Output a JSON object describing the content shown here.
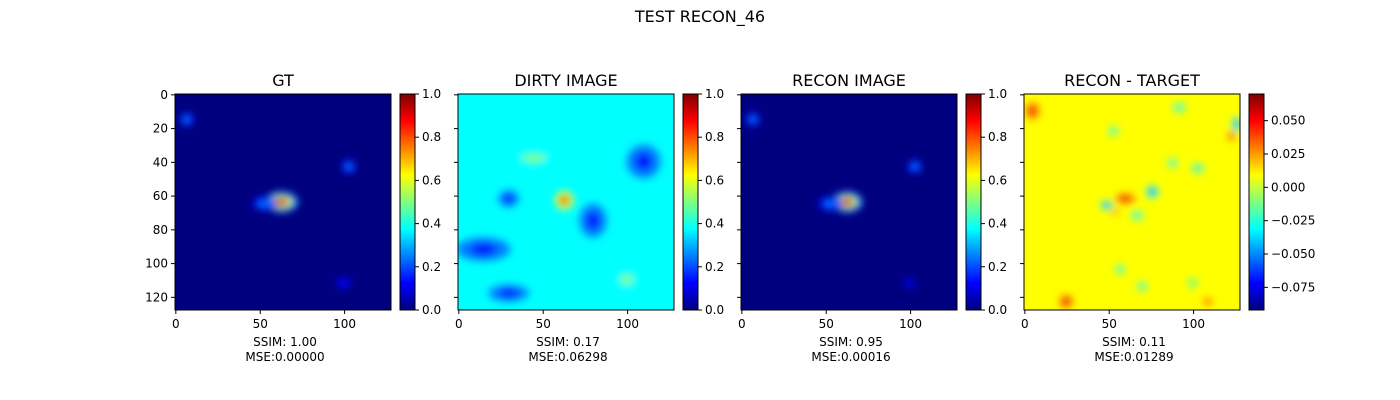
{
  "figure": {
    "title": "TEST RECON_46"
  },
  "colormap": [
    "#00007f",
    "#0000ff",
    "#007fff",
    "#00ffff",
    "#7fff7f",
    "#ffff00",
    "#ff7f00",
    "#ff0000",
    "#7f0000"
  ],
  "chart_data": [
    {
      "type": "heatmap",
      "title": "GT",
      "caption_line1": "SSIM: 1.00",
      "caption_line2": "MSE:0.00000",
      "image_size": [
        128,
        128
      ],
      "xticks": [
        "0",
        "50",
        "100"
      ],
      "yticks": [
        "0",
        "20",
        "40",
        "60",
        "80",
        "100",
        "120"
      ],
      "background_value": 0.06,
      "features": [
        {
          "x": 63,
          "y": 64,
          "rx": 10,
          "ry": 6,
          "value": 0.94
        },
        {
          "x": 53,
          "y": 65,
          "rx": 7,
          "ry": 4,
          "value": 0.3
        },
        {
          "x": 7,
          "y": 15,
          "rx": 4,
          "ry": 4,
          "value": 0.3
        },
        {
          "x": 103,
          "y": 43,
          "rx": 4,
          "ry": 4,
          "value": 0.3
        },
        {
          "x": 100,
          "y": 112,
          "rx": 4,
          "ry": 3,
          "value": 0.08
        }
      ],
      "colorbar": {
        "range": [
          0.0,
          1.0
        ],
        "ticks": [
          "0.0",
          "0.2",
          "0.4",
          "0.6",
          "0.8",
          "1.0"
        ]
      }
    },
    {
      "type": "heatmap",
      "title": "DIRTY IMAGE",
      "caption_line1": "SSIM: 0.17",
      "caption_line2": "MSE:0.06298",
      "image_size": [
        128,
        128
      ],
      "xticks": [
        "0",
        "50",
        "100"
      ],
      "yticks": [],
      "background_value": 0.33,
      "features": [
        {
          "x": 63,
          "y": 63,
          "rx": 6,
          "ry": 6,
          "value": 0.95
        },
        {
          "x": 30,
          "y": 62,
          "rx": 6,
          "ry": 5,
          "value": 0.1
        },
        {
          "x": 15,
          "y": 92,
          "rx": 16,
          "ry": 7,
          "value": 0.1
        },
        {
          "x": 110,
          "y": 40,
          "rx": 10,
          "ry": 10,
          "value": 0.12
        },
        {
          "x": 45,
          "y": 38,
          "rx": 14,
          "ry": 5,
          "value": 0.5
        },
        {
          "x": 30,
          "y": 118,
          "rx": 12,
          "ry": 5,
          "value": 0.12
        },
        {
          "x": 100,
          "y": 110,
          "rx": 8,
          "ry": 6,
          "value": 0.5
        },
        {
          "x": 80,
          "y": 75,
          "rx": 8,
          "ry": 10,
          "value": 0.12
        }
      ],
      "colorbar": {
        "range": [
          0.0,
          1.0
        ],
        "ticks": [
          "0.0",
          "0.2",
          "0.4",
          "0.6",
          "0.8",
          "1.0"
        ]
      }
    },
    {
      "type": "heatmap",
      "title": "RECON IMAGE",
      "caption_line1": "SSIM: 0.95",
      "caption_line2": "MSE:0.00016",
      "image_size": [
        128,
        128
      ],
      "xticks": [
        "0",
        "50",
        "100"
      ],
      "yticks": [],
      "background_value": 0.05,
      "features": [
        {
          "x": 63,
          "y": 64,
          "rx": 9,
          "ry": 6,
          "value": 0.94
        },
        {
          "x": 53,
          "y": 65,
          "rx": 7,
          "ry": 4,
          "value": 0.3
        },
        {
          "x": 7,
          "y": 15,
          "rx": 4,
          "ry": 4,
          "value": 0.3
        },
        {
          "x": 103,
          "y": 43,
          "rx": 4,
          "ry": 4,
          "value": 0.3
        },
        {
          "x": 100,
          "y": 112,
          "rx": 4,
          "ry": 3,
          "value": 0.08
        }
      ],
      "colorbar": {
        "range": [
          0.0,
          1.0
        ],
        "ticks": [
          "0.0",
          "0.2",
          "0.4",
          "0.6",
          "0.8",
          "1.0"
        ]
      }
    },
    {
      "type": "heatmap",
      "title": "RECON - TARGET",
      "caption_line1": "SSIM: 0.11",
      "caption_line2": "MSE:0.01289",
      "image_size": [
        128,
        128
      ],
      "xticks": [
        "0",
        "50",
        "100"
      ],
      "yticks": [],
      "background_value": 0.005,
      "features": [
        {
          "x": 5,
          "y": 10,
          "rx": 4,
          "ry": 5,
          "value": 0.07
        },
        {
          "x": 126,
          "y": 18,
          "rx": 3,
          "ry": 5,
          "value": -0.08
        },
        {
          "x": 123,
          "y": 25,
          "rx": 3,
          "ry": 4,
          "value": 0.06
        },
        {
          "x": 25,
          "y": 123,
          "rx": 4,
          "ry": 4,
          "value": 0.07
        },
        {
          "x": 60,
          "y": 62,
          "rx": 6,
          "ry": 3,
          "value": 0.07
        },
        {
          "x": 76,
          "y": 58,
          "rx": 4,
          "ry": 4,
          "value": -0.08
        },
        {
          "x": 49,
          "y": 66,
          "rx": 4,
          "ry": 3,
          "value": -0.07
        },
        {
          "x": 54,
          "y": 70,
          "rx": 3,
          "ry": 2,
          "value": 0.045
        },
        {
          "x": 67,
          "y": 72,
          "rx": 4,
          "ry": 3,
          "value": -0.035
        },
        {
          "x": 53,
          "y": 22,
          "rx": 3,
          "ry": 3,
          "value": -0.04
        },
        {
          "x": 92,
          "y": 8,
          "rx": 4,
          "ry": 3,
          "value": -0.035
        },
        {
          "x": 103,
          "y": 44,
          "rx": 4,
          "ry": 3,
          "value": -0.045
        },
        {
          "x": 88,
          "y": 41,
          "rx": 3,
          "ry": 3,
          "value": -0.03
        },
        {
          "x": 57,
          "y": 104,
          "rx": 3,
          "ry": 3,
          "value": -0.035
        },
        {
          "x": 70,
          "y": 114,
          "rx": 3,
          "ry": 3,
          "value": -0.03
        },
        {
          "x": 109,
          "y": 123,
          "rx": 4,
          "ry": 3,
          "value": 0.04
        },
        {
          "x": 100,
          "y": 112,
          "rx": 3,
          "ry": 3,
          "value": -0.02
        }
      ],
      "colorbar": {
        "range": [
          -0.092,
          0.07
        ],
        "ticks": [
          "−0.075",
          "−0.050",
          "−0.025",
          "0.000",
          "0.025",
          "0.050"
        ],
        "tick_values": [
          -0.075,
          -0.05,
          -0.025,
          0.0,
          0.025,
          0.05
        ]
      }
    }
  ]
}
